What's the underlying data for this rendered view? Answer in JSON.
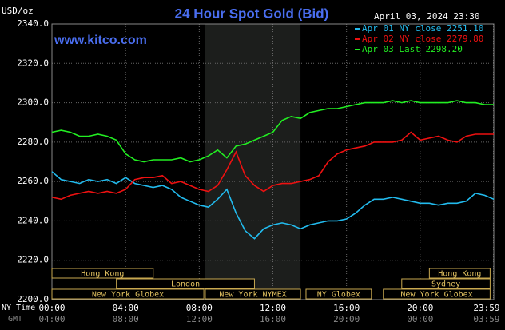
{
  "chart_data": {
    "type": "line",
    "title": "24 Hour Spot Gold (Bid)",
    "site": "www.kitco.com",
    "timestamp": "April 03, 2024 23:30",
    "y_label": "USD/oz",
    "x_label": "NY Time",
    "x2_label": "GMT",
    "grid": true,
    "legend": "top-right",
    "x": [
      0,
      0.5,
      1,
      1.5,
      2,
      2.5,
      3,
      3.5,
      4,
      4.5,
      5,
      5.5,
      6,
      6.5,
      7,
      7.5,
      8,
      8.5,
      9,
      9.5,
      10,
      10.5,
      11,
      11.5,
      12,
      12.5,
      13,
      13.5,
      14,
      14.5,
      15,
      15.5,
      16,
      16.5,
      17,
      17.5,
      18,
      18.5,
      19,
      19.5,
      20,
      20.5,
      21,
      21.5,
      22,
      22.5,
      23,
      23.5,
      24
    ],
    "series": [
      {
        "name": "Apr 01 NY close 2251.10",
        "color": "#22bbee",
        "values": [
          2265,
          2261,
          2260,
          2259,
          2261,
          2260,
          2261,
          2259,
          2262,
          2259,
          2258,
          2257,
          2258,
          2256,
          2252,
          2250,
          2248,
          2247,
          2251,
          2256,
          2244,
          2235,
          2231,
          2236,
          2238,
          2239,
          2238,
          2236,
          2238,
          2239,
          2240,
          2240,
          2241,
          2244,
          2248,
          2251,
          2251,
          2252,
          2251,
          2250,
          2249,
          2249,
          2248,
          2249,
          2249,
          2250,
          2254,
          2253,
          2251
        ]
      },
      {
        "name": "Apr 02 NY close 2279.80",
        "color": "#ee1111",
        "values": [
          2252,
          2251,
          2253,
          2254,
          2255,
          2254,
          2255,
          2254,
          2256,
          2261,
          2262,
          2262,
          2263,
          2259,
          2260,
          2258,
          2256,
          2255,
          2258,
          2266,
          2275,
          2263,
          2258,
          2255,
          2258,
          2259,
          2259,
          2260,
          2261,
          2263,
          2270,
          2274,
          2276,
          2277,
          2278,
          2280,
          2280,
          2280,
          2281,
          2285,
          2281,
          2282,
          2283,
          2281,
          2280,
          2283,
          2284,
          2284,
          2284
        ]
      },
      {
        "name": "Apr 03 Last 2298.20",
        "color": "#22ee22",
        "values": [
          2285,
          2286,
          2285,
          2283,
          2283,
          2284,
          2283,
          2281,
          2274,
          2271,
          2270,
          2271,
          2271,
          2271,
          2272,
          2270,
          2271,
          2273,
          2276,
          2272,
          2278,
          2279,
          2281,
          2283,
          2285,
          2291,
          2293,
          2292,
          2295,
          2296,
          2297,
          2297,
          2298,
          2299,
          2300,
          2300,
          2300,
          2301,
          2300,
          2301,
          2300,
          2300,
          2300,
          2300,
          2301,
          2300,
          2300,
          2299,
          2299
        ]
      }
    ],
    "xlim": [
      0,
      24
    ],
    "ylim": [
      2200,
      2340
    ],
    "xticks": [
      {
        "value": 0,
        "label": "00:00"
      },
      {
        "value": 4,
        "label": "04:00"
      },
      {
        "value": 8,
        "label": "08:00"
      },
      {
        "value": 12,
        "label": "12:00"
      },
      {
        "value": 16,
        "label": "16:00"
      },
      {
        "value": 20,
        "label": "20:00"
      },
      {
        "value": 23.98,
        "label": "23:59"
      }
    ],
    "gmt_ticks": [
      {
        "value": 0,
        "label": "04:00"
      },
      {
        "value": 4,
        "label": "08:00"
      },
      {
        "value": 8,
        "label": "12:00"
      },
      {
        "value": 12,
        "label": "16:00"
      },
      {
        "value": 16,
        "label": "20:00"
      },
      {
        "value": 20,
        "label": "00:00"
      },
      {
        "value": 23.98,
        "label": "03:59"
      }
    ],
    "yticks": [
      {
        "value": 2200,
        "label": "2200.0"
      },
      {
        "value": 2220,
        "label": "2220.0"
      },
      {
        "value": 2240,
        "label": "2240.0"
      },
      {
        "value": 2260,
        "label": "2260.0"
      },
      {
        "value": 2280,
        "label": "2280.0"
      },
      {
        "value": 2300,
        "label": "2300.0"
      },
      {
        "value": 2320,
        "label": "2320.0"
      },
      {
        "value": 2340,
        "label": "2340.0"
      }
    ],
    "market_sessions": [
      {
        "label": "Hong Kong",
        "start": 0,
        "end": 5.5
      },
      {
        "label": "London",
        "start": 3.5,
        "end": 11
      },
      {
        "label": "New York Globex",
        "start": 0,
        "end": 8.25
      },
      {
        "label": "New York NYMEX",
        "start": 8.33,
        "end": 13.5
      },
      {
        "label": "NY Globex",
        "start": 13.8,
        "end": 17.35
      },
      {
        "label": "Hong Kong",
        "start": 20.5,
        "end": 23.8
      },
      {
        "label": "Sydney",
        "start": 19,
        "end": 23.8
      },
      {
        "label": "New York Globex",
        "start": 18,
        "end": 23.8
      }
    ]
  }
}
